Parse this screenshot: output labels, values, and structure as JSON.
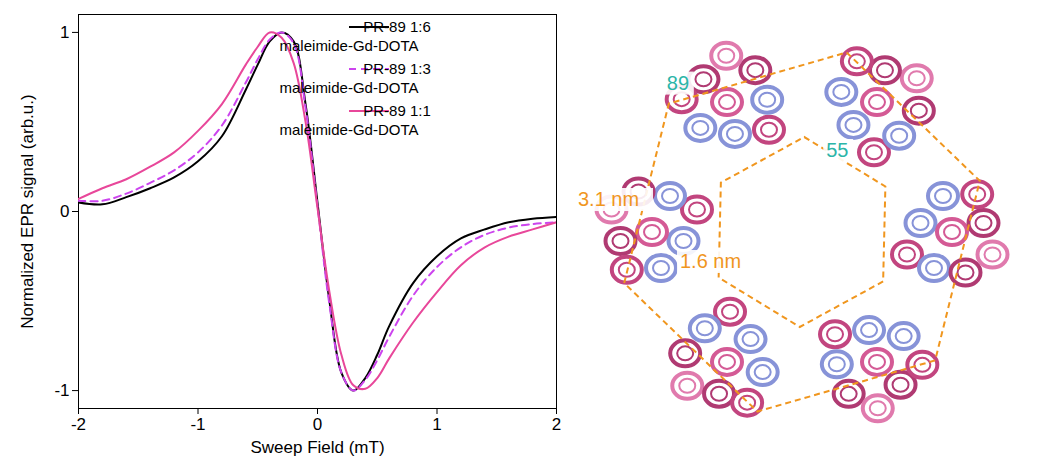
{
  "chart_data": {
    "type": "line",
    "x_label": "Sweep Field (mT)",
    "y_label": "Normalized EPR signal (arb.u.)",
    "x": [
      -2,
      -1.8,
      -1.6,
      -1.4,
      -1.2,
      -1.0,
      -0.8,
      -0.6,
      -0.5,
      -0.4,
      -0.3,
      -0.2,
      -0.1,
      0,
      0.1,
      0.2,
      0.3,
      0.4,
      0.5,
      0.6,
      0.8,
      1.0,
      1.2,
      1.4,
      1.6,
      1.8,
      2.0
    ],
    "series": [
      {
        "name": "PR-89 1:6 maleimide-Gd-DOTA",
        "color": "#000000",
        "line_style": "solid",
        "values": [
          0.05,
          0.04,
          0.08,
          0.13,
          0.19,
          0.28,
          0.42,
          0.68,
          0.82,
          0.95,
          1.0,
          0.95,
          0.6,
          0.05,
          -0.5,
          -0.9,
          -1.0,
          -0.93,
          -0.8,
          -0.64,
          -0.4,
          -0.25,
          -0.15,
          -0.1,
          -0.06,
          -0.04,
          -0.03
        ]
      },
      {
        "name": "PR-89 1:3 maleimide-Gd-DOTA",
        "color": "#cc44ee",
        "line_style": "dashed",
        "values": [
          0.06,
          0.06,
          0.1,
          0.16,
          0.23,
          0.33,
          0.48,
          0.72,
          0.85,
          0.96,
          1.0,
          0.94,
          0.58,
          0.03,
          -0.52,
          -0.9,
          -1.0,
          -0.94,
          -0.83,
          -0.7,
          -0.47,
          -0.31,
          -0.2,
          -0.13,
          -0.09,
          -0.07,
          -0.06
        ]
      },
      {
        "name": "PR-89 1:1 maleimide-Gd-DOTA",
        "color": "#e8479a",
        "line_style": "solid",
        "values": [
          0.07,
          0.13,
          0.18,
          0.25,
          0.33,
          0.45,
          0.6,
          0.82,
          0.92,
          1.0,
          0.97,
          0.83,
          0.5,
          0.02,
          -0.45,
          -0.8,
          -0.97,
          -0.99,
          -0.93,
          -0.82,
          -0.62,
          -0.45,
          -0.3,
          -0.2,
          -0.14,
          -0.1,
          -0.06
        ]
      }
    ],
    "xlim": [
      -2,
      2
    ],
    "xticks": [
      -2,
      -1,
      0,
      1,
      2
    ],
    "ylim": [
      -1.1,
      1.1
    ],
    "yticks": [
      -1,
      0,
      1
    ],
    "legend": "top-right",
    "grid": false
  },
  "diagram": {
    "site_labels": [
      {
        "text": "89",
        "color": "#2bb5a8"
      },
      {
        "text": "55",
        "color": "#2bb5a8"
      }
    ],
    "distance_labels": [
      {
        "text": "3.1 nm",
        "color": "#f0961e"
      },
      {
        "text": "1.6 nm",
        "color": "#f0961e"
      }
    ]
  }
}
